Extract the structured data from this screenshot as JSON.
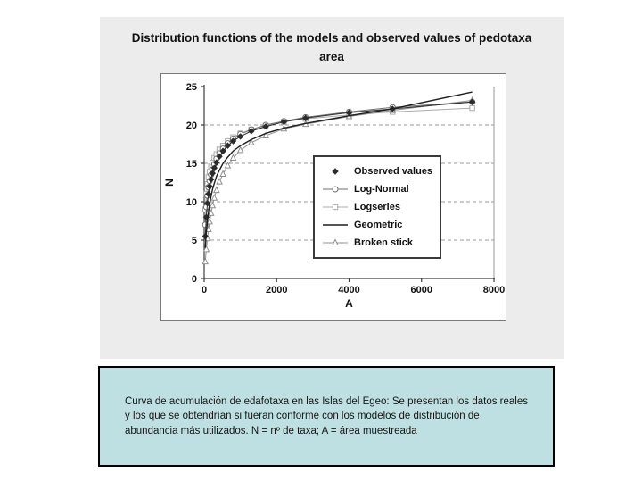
{
  "slide": {
    "title": "Distribution functions of the models and observed values of pedotaxa area"
  },
  "chart_data": {
    "type": "line",
    "title": "Distribution functions of the models and observed values of pedotaxa area",
    "xlabel": "A",
    "ylabel": "N",
    "xlim": [
      0,
      8000
    ],
    "ylim": [
      0,
      25
    ],
    "x_ticks": [
      0,
      2000,
      4000,
      6000,
      8000
    ],
    "y_ticks": [
      0,
      5,
      10,
      15,
      20,
      25
    ],
    "grid": "horizontal-dashed",
    "legend_position": "center-right",
    "x": [
      30,
      60,
      90,
      120,
      150,
      190,
      230,
      280,
      340,
      420,
      520,
      650,
      800,
      1000,
      1300,
      1700,
      2200,
      2800,
      4000,
      5200,
      7400
    ],
    "series": [
      {
        "name": "Observed values",
        "marker": "diamond",
        "swatch": "marker",
        "color": "#2b2b2b",
        "width": 1,
        "values": [
          5.5,
          8.0,
          9.8,
          11.0,
          12.0,
          12.9,
          13.7,
          14.4,
          15.1,
          15.9,
          16.6,
          17.3,
          17.9,
          18.5,
          19.2,
          19.8,
          20.4,
          20.9,
          21.6,
          22.1,
          23.0
        ]
      },
      {
        "name": "Log-Normal",
        "marker": "circle",
        "swatch": "line+marker",
        "color": "#6f6f6f",
        "width": 1,
        "values": [
          7.0,
          9.3,
          10.8,
          11.9,
          12.7,
          13.5,
          14.2,
          14.9,
          15.6,
          16.3,
          16.9,
          17.6,
          18.2,
          18.8,
          19.4,
          20.0,
          20.5,
          21.0,
          21.7,
          22.3,
          23.0
        ]
      },
      {
        "name": "Logseries",
        "marker": "square",
        "swatch": "line+marker",
        "color": "#ababab",
        "width": 1,
        "values": [
          9.0,
          11.0,
          12.3,
          13.2,
          13.9,
          14.6,
          15.1,
          15.7,
          16.2,
          16.8,
          17.3,
          17.9,
          18.4,
          18.9,
          19.4,
          19.9,
          20.4,
          20.8,
          21.3,
          21.7,
          22.2
        ]
      },
      {
        "name": "Geometric",
        "marker": "none",
        "swatch": "line",
        "color": "#1f1f1f",
        "width": 1.4,
        "values": [
          4.0,
          6.0,
          7.5,
          8.7,
          9.7,
          10.7,
          11.6,
          12.4,
          13.3,
          14.1,
          15.0,
          15.8,
          16.6,
          17.3,
          18.1,
          18.9,
          19.6,
          20.2,
          21.2,
          22.1,
          24.3
        ]
      },
      {
        "name": "Broken stick",
        "marker": "triangle",
        "swatch": "line+marker",
        "color": "#8f8f8f",
        "width": 1,
        "values": [
          2.2,
          3.8,
          5.2,
          6.4,
          7.4,
          8.5,
          9.5,
          10.5,
          11.5,
          12.6,
          13.6,
          14.7,
          15.7,
          16.7,
          17.7,
          18.6,
          19.5,
          20.1,
          21.1,
          21.9,
          23.2
        ]
      }
    ],
    "colors": {
      "grid": "#9a9a9a",
      "axis": "#3c3c3c",
      "plot_border": "#9a9a9a",
      "tick_label": "#111111"
    }
  },
  "caption": {
    "text": "Curva de acumulación de edafotaxa en las Islas del Egeo: Se presentan los datos reales y los que se obtendrían si fueran conforme con los modelos de distribución de abundancia más utilizados. N = nº de taxa; A = área muestreada"
  }
}
